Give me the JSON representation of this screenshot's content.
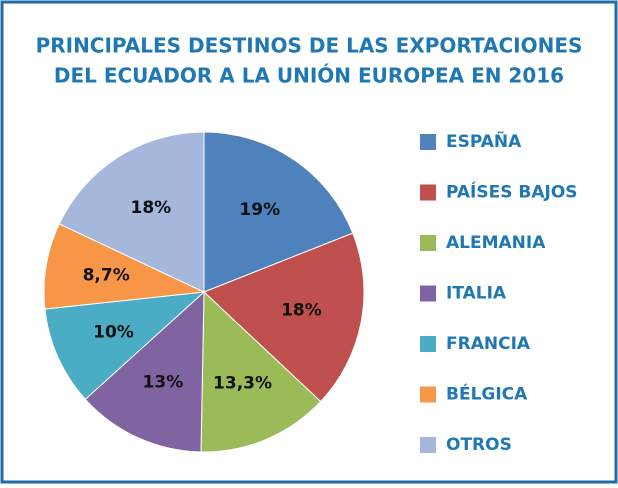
{
  "chart_data": {
    "type": "pie",
    "title": [
      "PRINCIPALES DESTINOS DE LAS EXPORTACIONES",
      "DEL ECUADOR  A LA UNIÓN EUROPEA EN 2016"
    ],
    "categories": [
      "ESPAÑA",
      "PAÍSES BAJOS",
      "ALEMANIA",
      "ITALIA",
      "FRANCIA",
      "BÉLGICA",
      "OTROS"
    ],
    "values": [
      19,
      18,
      13.3,
      13,
      10,
      8.7,
      18
    ],
    "value_labels": [
      "19%",
      "18%",
      "13,3%",
      "13%",
      "10%",
      "8,7%",
      "18%"
    ],
    "colors": [
      "#4f81bd",
      "#c0504d",
      "#9bbb59",
      "#8064a2",
      "#4bacc6",
      "#f79646",
      "#a5b8dc"
    ],
    "legend": "right"
  }
}
